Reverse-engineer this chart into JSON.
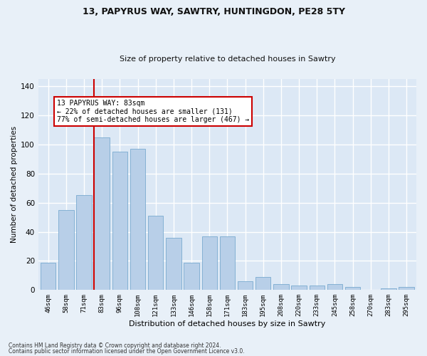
{
  "title1": "13, PAPYRUS WAY, SAWTRY, HUNTINGDON, PE28 5TY",
  "title2": "Size of property relative to detached houses in Sawtry",
  "xlabel": "Distribution of detached houses by size in Sawtry",
  "ylabel": "Number of detached properties",
  "categories": [
    "46sqm",
    "58sqm",
    "71sqm",
    "83sqm",
    "96sqm",
    "108sqm",
    "121sqm",
    "133sqm",
    "146sqm",
    "158sqm",
    "171sqm",
    "183sqm",
    "195sqm",
    "208sqm",
    "220sqm",
    "233sqm",
    "245sqm",
    "258sqm",
    "270sqm",
    "283sqm",
    "295sqm"
  ],
  "values": [
    19,
    55,
    65,
    105,
    95,
    97,
    51,
    36,
    19,
    37,
    37,
    6,
    9,
    4,
    3,
    3,
    4,
    2,
    0,
    1,
    2
  ],
  "bar_color": "#b8cfe8",
  "bar_edge_color": "#7aaad0",
  "vline_index": 3,
  "vline_color": "#cc0000",
  "annotation_line1": "13 PAPYRUS WAY: 83sqm",
  "annotation_line2": "← 22% of detached houses are smaller (131)",
  "annotation_line3": "77% of semi-detached houses are larger (467) →",
  "annotation_box_facecolor": "#ffffff",
  "annotation_box_edgecolor": "#cc0000",
  "ylim": [
    0,
    145
  ],
  "yticks": [
    0,
    20,
    40,
    60,
    80,
    100,
    120,
    140
  ],
  "plot_bg": "#dce8f5",
  "grid_color": "#ffffff",
  "fig_bg": "#e8f0f8",
  "footer1": "Contains HM Land Registry data © Crown copyright and database right 2024.",
  "footer2": "Contains public sector information licensed under the Open Government Licence v3.0."
}
